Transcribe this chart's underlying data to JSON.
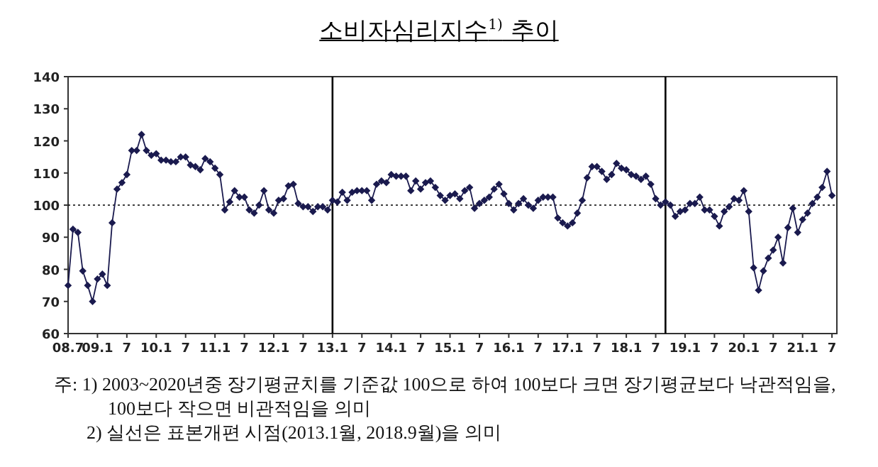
{
  "chart_data": {
    "type": "line",
    "title": "소비자심리지수$^{1)}$ 추이",
    "annotations": [
      "주: 1) 2003~2020년중 장기평균치를 기준값 100으로 하여 100보다 크면 장기평균보다 낙관적임을, 100보다 작으면 비관적임을 의미",
      "2) 실선은 표본개편 시점(2013.1월, 2018.9월)을 의미"
    ],
    "x": [
      "2008-07",
      "2008-08",
      "2008-09",
      "2008-10",
      "2008-11",
      "2008-12",
      "2009-01",
      "2009-02",
      "2009-03",
      "2009-04",
      "2009-05",
      "2009-06",
      "2009-07",
      "2009-08",
      "2009-09",
      "2009-10",
      "2009-11",
      "2009-12",
      "2010-01",
      "2010-02",
      "2010-03",
      "2010-04",
      "2010-05",
      "2010-06",
      "2010-07",
      "2010-08",
      "2010-09",
      "2010-10",
      "2010-11",
      "2010-12",
      "2011-01",
      "2011-02",
      "2011-03",
      "2011-04",
      "2011-05",
      "2011-06",
      "2011-07",
      "2011-08",
      "2011-09",
      "2011-10",
      "2011-11",
      "2011-12",
      "2012-01",
      "2012-02",
      "2012-03",
      "2012-04",
      "2012-05",
      "2012-06",
      "2012-07",
      "2012-08",
      "2012-09",
      "2012-10",
      "2012-11",
      "2012-12",
      "2013-01",
      "2013-02",
      "2013-03",
      "2013-04",
      "2013-05",
      "2013-06",
      "2013-07",
      "2013-08",
      "2013-09",
      "2013-10",
      "2013-11",
      "2013-12",
      "2014-01",
      "2014-02",
      "2014-03",
      "2014-04",
      "2014-05",
      "2014-06",
      "2014-07",
      "2014-08",
      "2014-09",
      "2014-10",
      "2014-11",
      "2014-12",
      "2015-01",
      "2015-02",
      "2015-03",
      "2015-04",
      "2015-05",
      "2015-06",
      "2015-07",
      "2015-08",
      "2015-09",
      "2015-10",
      "2015-11",
      "2015-12",
      "2016-01",
      "2016-02",
      "2016-03",
      "2016-04",
      "2016-05",
      "2016-06",
      "2016-07",
      "2016-08",
      "2016-09",
      "2016-10",
      "2016-11",
      "2016-12",
      "2017-01",
      "2017-02",
      "2017-03",
      "2017-04",
      "2017-05",
      "2017-06",
      "2017-07",
      "2017-08",
      "2017-09",
      "2017-10",
      "2017-11",
      "2017-12",
      "2018-01",
      "2018-02",
      "2018-03",
      "2018-04",
      "2018-05",
      "2018-06",
      "2018-07",
      "2018-08",
      "2018-09",
      "2018-10",
      "2018-11",
      "2018-12",
      "2019-01",
      "2019-02",
      "2019-03",
      "2019-04",
      "2019-05",
      "2019-06",
      "2019-07",
      "2019-08",
      "2019-09",
      "2019-10",
      "2019-11",
      "2019-12",
      "2020-01",
      "2020-02",
      "2020-03",
      "2020-04",
      "2020-05",
      "2020-06",
      "2020-07",
      "2020-08",
      "2020-09",
      "2020-10",
      "2020-11",
      "2020-12",
      "2021-01",
      "2021-02",
      "2021-03",
      "2021-04",
      "2021-05",
      "2021-06",
      "2021-07"
    ],
    "series": [
      {
        "color": "#1a1a4e",
        "values": [
          75,
          92.5,
          91.5,
          79.5,
          75,
          70,
          77,
          78.5,
          75,
          94.5,
          105,
          107,
          109.5,
          117,
          117,
          122,
          117,
          115.5,
          116,
          114,
          114,
          113.5,
          113.5,
          115,
          115,
          112.5,
          112,
          111,
          114.5,
          113.5,
          111.5,
          109.5,
          98.5,
          101,
          104.5,
          102.5,
          102.5,
          98.5,
          97.5,
          100,
          104.5,
          98.5,
          97.5,
          101.5,
          102,
          106,
          106.5,
          100.5,
          99.5,
          99.5,
          98,
          99.5,
          99.5,
          98.5,
          101.5,
          101,
          104,
          101.5,
          104,
          104.5,
          104.5,
          104.5,
          101.5,
          106.5,
          107.5,
          107,
          109.5,
          109,
          109,
          109,
          104.5,
          107.5,
          105,
          107,
          107.5,
          105.5,
          103,
          101.5,
          103,
          103.5,
          102,
          104.5,
          105.5,
          99,
          100.5,
          101.5,
          102.5,
          105,
          106.5,
          103.5,
          100.5,
          98.5,
          100.5,
          102,
          100,
          99,
          101.5,
          102.5,
          102.5,
          102.5,
          96,
          94.5,
          93.5,
          94.5,
          97.5,
          101.5,
          108.5,
          112,
          112,
          110.5,
          108,
          109.5,
          113,
          111.5,
          111,
          109.5,
          109,
          108,
          109,
          106.5,
          102,
          100,
          101,
          100,
          96.5,
          98,
          98.5,
          100.5,
          100.5,
          102.5,
          98.5,
          98.5,
          96.5,
          93.5,
          98,
          99.5,
          102,
          101.5,
          104.5,
          98,
          80.5,
          73.5,
          79.5,
          83.5,
          86,
          90,
          82,
          93,
          99,
          91.5,
          95.5,
          97.5,
          100.5,
          102.5,
          105.5,
          110.5,
          103
        ]
      }
    ],
    "xlim": [
      "2008-07",
      "2021-08"
    ],
    "xticks": [
      {
        "value": "2008-07",
        "label": "08.7"
      },
      {
        "value": "2009-01",
        "label": "09.1"
      },
      {
        "value": "2009-07",
        "label": "7"
      },
      {
        "value": "2010-01",
        "label": "10.1"
      },
      {
        "value": "2010-07",
        "label": "7"
      },
      {
        "value": "2011-01",
        "label": "11.1"
      },
      {
        "value": "2011-07",
        "label": "7"
      },
      {
        "value": "2012-01",
        "label": "12.1"
      },
      {
        "value": "2012-07",
        "label": "7"
      },
      {
        "value": "2013-01",
        "label": "13.1"
      },
      {
        "value": "2013-07",
        "label": "7"
      },
      {
        "value": "2014-01",
        "label": "14.1"
      },
      {
        "value": "2014-07",
        "label": "7"
      },
      {
        "value": "2015-01",
        "label": "15.1"
      },
      {
        "value": "2015-07",
        "label": "7"
      },
      {
        "value": "2016-01",
        "label": "16.1"
      },
      {
        "value": "2016-07",
        "label": "7"
      },
      {
        "value": "2017-01",
        "label": "17.1"
      },
      {
        "value": "2017-07",
        "label": "7"
      },
      {
        "value": "2018-01",
        "label": "18.1"
      },
      {
        "value": "2018-07",
        "label": "7"
      },
      {
        "value": "2019-01",
        "label": "19.1"
      },
      {
        "value": "2019-07",
        "label": "7"
      },
      {
        "value": "2020-01",
        "label": "20.1"
      },
      {
        "value": "2020-07",
        "label": "7"
      },
      {
        "value": "2021-01",
        "label": "21.1"
      },
      {
        "value": "2021-07",
        "label": "7"
      }
    ],
    "ylim": [
      60,
      140
    ],
    "yticks": [
      60,
      70,
      80,
      90,
      100,
      110,
      120,
      130,
      140
    ],
    "ref_lines": [
      {
        "axis": "y",
        "value": 100,
        "line_style": "dotted",
        "color": "#000000"
      },
      {
        "axis": "x",
        "value": "2013-01",
        "line_style": "solid",
        "color": "#000000"
      },
      {
        "axis": "x",
        "value": "2018-09",
        "line_style": "solid",
        "color": "#000000"
      }
    ],
    "marker": "diamond"
  }
}
